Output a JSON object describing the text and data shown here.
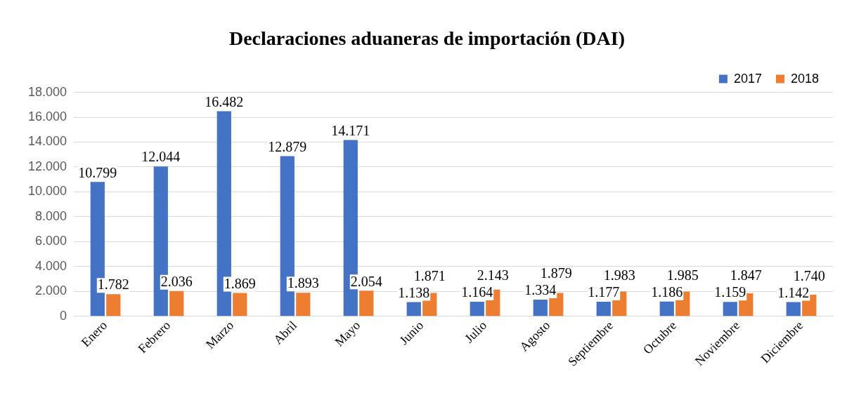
{
  "chart_data": {
    "type": "bar",
    "title": "Declaraciones aduaneras de importación (DAI)",
    "categories": [
      "Enero",
      "Febrero",
      "Marzo",
      "Abril",
      "Mayo",
      "Junio",
      "Julio",
      "Agosto",
      "Septiembre",
      "Octubre",
      "Noviembre",
      "Diciembre"
    ],
    "series": [
      {
        "name": "2017",
        "color": "#4472c4",
        "values": [
          10799,
          12044,
          16482,
          12879,
          14171,
          1138,
          1164,
          1334,
          1177,
          1186,
          1159,
          1142
        ],
        "value_labels": [
          "10.799",
          "12.044",
          "16.482",
          "12.879",
          "14.171",
          "1.138",
          "1.164",
          "1.334",
          "1.177",
          "1.186",
          "1.159",
          "1.142"
        ]
      },
      {
        "name": "2018",
        "color": "#ed7d31",
        "values": [
          1782,
          2036,
          1869,
          1893,
          2054,
          1871,
          2143,
          1879,
          1983,
          1985,
          1847,
          1740
        ],
        "value_labels": [
          "1.782",
          "2.036",
          "1.869",
          "1.893",
          "2.054",
          "1.871",
          "2.143",
          "1.879",
          "1.983",
          "1.985",
          "1.847",
          "1.740"
        ]
      }
    ],
    "ylim": [
      0,
      18000
    ],
    "yticks": [
      0,
      {
        "value": 2000,
        "label": "2.000"
      },
      {
        "value": 4000,
        "label": "4.000"
      },
      {
        "value": 6000,
        "label": "6.000"
      },
      {
        "value": 8000,
        "label": "8.000"
      },
      {
        "value": 10000,
        "label": "10.000"
      },
      {
        "value": 12000,
        "label": "12.000"
      },
      {
        "value": 14000,
        "label": "14.000"
      },
      {
        "value": 16000,
        "label": "16.000"
      },
      {
        "value": 18000,
        "label": "18.000"
      }
    ],
    "grid": "y",
    "legend": "top right"
  }
}
